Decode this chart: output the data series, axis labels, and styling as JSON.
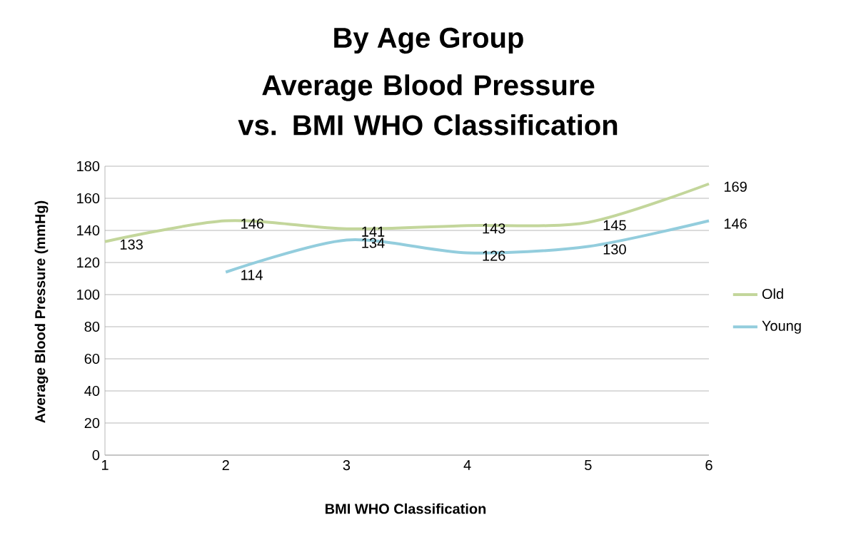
{
  "chart_data": {
    "type": "line",
    "title": "By Age Group",
    "subtitle": "Average Blood Pressure vs. BMI WHO Classification",
    "xlabel": "BMI WHO Classification",
    "ylabel": "Average Blood Pressure (mmHg)",
    "x": [
      1,
      2,
      3,
      4,
      5,
      6
    ],
    "series": [
      {
        "name": "Old",
        "color": "#c3d69b",
        "values": [
          133,
          146,
          141,
          143,
          145,
          169
        ]
      },
      {
        "name": "Young",
        "color": "#93cddd",
        "values": [
          null,
          114,
          134,
          126,
          130,
          146
        ]
      }
    ],
    "xlim": [
      1,
      6
    ],
    "xticks": [
      1,
      2,
      3,
      4,
      5,
      6
    ],
    "ylim": [
      0,
      180
    ],
    "yticks": [
      0,
      20,
      40,
      60,
      80,
      100,
      120,
      140,
      160,
      180
    ],
    "grid": "y",
    "legend": "right",
    "data_labels": true,
    "marker": "none",
    "line_style": "solid"
  }
}
